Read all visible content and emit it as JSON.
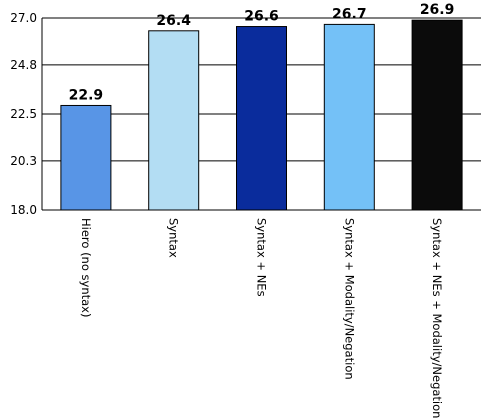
{
  "chart_data": {
    "type": "bar",
    "categories": [
      "Hiero (no syntax)",
      "Syntax",
      "Syntax + NEs",
      "Syntax + Modality/Negation",
      "Syntax + NEs + Modality/Negation"
    ],
    "values": [
      22.9,
      26.4,
      26.6,
      26.7,
      26.9
    ],
    "value_labels": [
      "22.9",
      "26.4",
      "26.6",
      "26.7",
      "26.9"
    ],
    "colors": [
      "#5895e6",
      "#b3ddf3",
      "#0a2c9c",
      "#74c1f7",
      "#0b0b0b"
    ],
    "ylim": [
      18.0,
      27.0
    ],
    "yticks": [
      18.0,
      20.3,
      22.5,
      24.8,
      27.0
    ],
    "ytick_labels": [
      "18.0",
      "20.3",
      "22.5",
      "24.8",
      "27.0"
    ],
    "title": "",
    "xlabel": "",
    "ylabel": "",
    "grid": true,
    "legend": "none"
  }
}
